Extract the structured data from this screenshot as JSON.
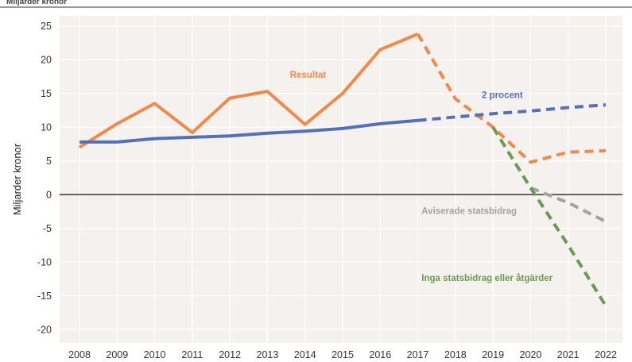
{
  "header": {
    "caption": "Miljarder kronor"
  },
  "chart_data": {
    "type": "line",
    "ylabel": "Miljarder kronor",
    "xlabel": "",
    "ylim": [
      -22,
      26.5
    ],
    "yticks": [
      25,
      20,
      15,
      10,
      5,
      0,
      -5,
      -10,
      -15,
      -20
    ],
    "yticklabels": [
      "25",
      "20",
      "15",
      "10",
      "5",
      "0",
      "-5",
      "-10",
      "-15",
      "-20"
    ],
    "x": [
      2008,
      2009,
      2010,
      2011,
      2012,
      2013,
      2014,
      2015,
      2016,
      2017,
      2018,
      2019,
      2020,
      2021,
      2022
    ],
    "xticklabels": [
      "2008",
      "2009",
      "2010",
      "2011",
      "2012",
      "2013",
      "2014",
      "2015",
      "2016",
      "2017",
      "2018",
      "2019",
      "2020",
      "2021",
      "2022"
    ],
    "grid": true,
    "legend": "none",
    "series": [
      {
        "name": "Resultat",
        "color": "#f08a4b",
        "style": "solid",
        "x": [
          2008,
          2009,
          2010,
          2011,
          2012,
          2013,
          2014,
          2015,
          2016,
          2017
        ],
        "values": [
          7.0,
          10.5,
          13.5,
          9.2,
          14.3,
          15.3,
          10.4,
          15.0,
          21.5,
          23.8
        ]
      },
      {
        "name": "Resultat (prognos)",
        "color": "#f08a4b",
        "style": "dashed",
        "x": [
          2017,
          2018,
          2019,
          2020,
          2021,
          2022
        ],
        "values": [
          23.8,
          14.2,
          10.0,
          4.8,
          6.3,
          6.5
        ]
      },
      {
        "name": "2 procent",
        "color": "#5470b8",
        "style": "solid",
        "x": [
          2008,
          2009,
          2010,
          2011,
          2012,
          2013,
          2014,
          2015,
          2016,
          2017
        ],
        "values": [
          7.8,
          7.8,
          8.3,
          8.5,
          8.7,
          9.1,
          9.4,
          9.8,
          10.5,
          11.0
        ]
      },
      {
        "name": "2 procent (prognos)",
        "color": "#5470b8",
        "style": "dashed",
        "x": [
          2017,
          2018,
          2019,
          2020,
          2021,
          2022
        ],
        "values": [
          11.0,
          11.5,
          12.0,
          12.4,
          12.9,
          13.3
        ]
      },
      {
        "name": "Aviserade statsbidrag",
        "color": "#a3a3a3",
        "style": "dashed",
        "x": [
          2020,
          2021,
          2022
        ],
        "values": [
          1.0,
          -1.2,
          -4.0
        ]
      },
      {
        "name": "Inga statsbidrag eller åtgärder",
        "color": "#6b9a52",
        "style": "dashed",
        "x": [
          2019,
          2020,
          2021,
          2022
        ],
        "values": [
          10.0,
          1.0,
          -7.5,
          -16.5
        ]
      }
    ],
    "annotations": [
      {
        "text": "Resultat",
        "x": 2013.6,
        "y": 17.3,
        "color": "#f08a4b"
      },
      {
        "text": "2 procent",
        "x": 2018.7,
        "y": 14.3,
        "color": "#5470b8"
      },
      {
        "text": "Aviserade statsbidrag",
        "x": 2017.1,
        "y": -2.9,
        "color": "#a3a3a3"
      },
      {
        "text": "Inga statsbidrag eller åtgärder",
        "x": 2017.1,
        "y": -12.8,
        "color": "#6b9a52"
      }
    ],
    "zero_line_color": "#333333",
    "plot_background": "#f4f1ee",
    "grid_color": "#ffffff"
  }
}
